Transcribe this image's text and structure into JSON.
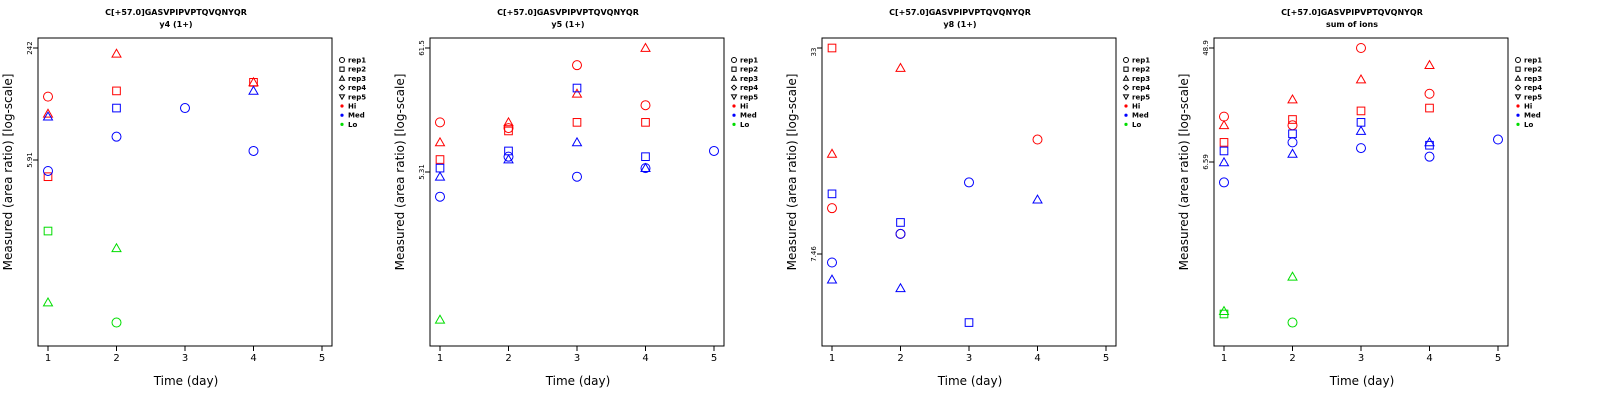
{
  "chart_data": [
    {
      "type": "scatter",
      "title": "C[+57.0]GASVPIPVPTQVQNYQR",
      "subtitle": "y4 (1+)",
      "xlabel": "Time (day)",
      "ylabel": "Measured (area ratio) [log-scale]",
      "xlim": [
        1,
        5
      ],
      "xticks": [
        "1",
        "2",
        "3",
        "4",
        "5"
      ],
      "ytick_labels": [
        "242",
        "5.91"
      ],
      "legend": [
        "rep1",
        "rep2",
        "rep3",
        "rep4",
        "rep5",
        "Hi",
        "Med",
        "Lo"
      ],
      "points": [
        {
          "x": 1,
          "level": "Hi",
          "rep": "rep1",
          "v": 0.83
        },
        {
          "x": 1,
          "level": "Hi",
          "rep": "rep2",
          "v": 0.55
        },
        {
          "x": 1,
          "level": "Hi",
          "rep": "rep3",
          "v": 0.77
        },
        {
          "x": 1,
          "level": "Med",
          "rep": "rep1",
          "v": 0.57
        },
        {
          "x": 1,
          "level": "Med",
          "rep": "rep3",
          "v": 0.76
        },
        {
          "x": 1,
          "level": "Lo",
          "rep": "rep2",
          "v": 0.36
        },
        {
          "x": 1,
          "level": "Lo",
          "rep": "rep3",
          "v": 0.11
        },
        {
          "x": 2,
          "level": "Hi",
          "rep": "rep2",
          "v": 0.85
        },
        {
          "x": 2,
          "level": "Hi",
          "rep": "rep3",
          "v": 0.98
        },
        {
          "x": 2,
          "level": "Med",
          "rep": "rep1",
          "v": 0.69
        },
        {
          "x": 2,
          "level": "Med",
          "rep": "rep2",
          "v": 0.79
        },
        {
          "x": 2,
          "level": "Lo",
          "rep": "rep1",
          "v": 0.04
        },
        {
          "x": 2,
          "level": "Lo",
          "rep": "rep3",
          "v": 0.3
        },
        {
          "x": 3,
          "level": "Med",
          "rep": "rep1",
          "v": 0.79
        },
        {
          "x": 4,
          "level": "Hi",
          "rep": "rep2",
          "v": 0.88
        },
        {
          "x": 4,
          "level": "Hi",
          "rep": "rep3",
          "v": 0.88
        },
        {
          "x": 4,
          "level": "Med",
          "rep": "rep1",
          "v": 0.64
        },
        {
          "x": 4,
          "level": "Med",
          "rep": "rep3",
          "v": 0.85
        }
      ]
    },
    {
      "type": "scatter",
      "title": "C[+57.0]GASVPIPVPTQVQNYQR",
      "subtitle": "y5 (1+)",
      "xlabel": "Time (day)",
      "ylabel": "Measured (area ratio) [log-scale]",
      "xlim": [
        1,
        5
      ],
      "xticks": [
        "1",
        "2",
        "3",
        "4",
        "5"
      ],
      "ytick_labels": [
        "61.5",
        "5.31"
      ],
      "legend": [
        "rep1",
        "rep2",
        "rep3",
        "rep4",
        "rep5",
        "Hi",
        "Med",
        "Lo"
      ],
      "points": [
        {
          "x": 1,
          "level": "Hi",
          "rep": "rep1",
          "v": 0.74
        },
        {
          "x": 1,
          "level": "Hi",
          "rep": "rep2",
          "v": 0.61
        },
        {
          "x": 1,
          "level": "Hi",
          "rep": "rep3",
          "v": 0.67
        },
        {
          "x": 1,
          "level": "Med",
          "rep": "rep1",
          "v": 0.48
        },
        {
          "x": 1,
          "level": "Med",
          "rep": "rep2",
          "v": 0.58
        },
        {
          "x": 1,
          "level": "Med",
          "rep": "rep3",
          "v": 0.55
        },
        {
          "x": 1,
          "level": "Lo",
          "rep": "rep3",
          "v": 0.05
        },
        {
          "x": 2,
          "level": "Hi",
          "rep": "rep1",
          "v": 0.72
        },
        {
          "x": 2,
          "level": "Hi",
          "rep": "rep2",
          "v": 0.71
        },
        {
          "x": 2,
          "level": "Hi",
          "rep": "rep3",
          "v": 0.74
        },
        {
          "x": 2,
          "level": "Med",
          "rep": "rep1",
          "v": 0.62
        },
        {
          "x": 2,
          "level": "Med",
          "rep": "rep2",
          "v": 0.64
        },
        {
          "x": 2,
          "level": "Med",
          "rep": "rep3",
          "v": 0.61
        },
        {
          "x": 3,
          "level": "Hi",
          "rep": "rep1",
          "v": 0.94
        },
        {
          "x": 3,
          "level": "Hi",
          "rep": "rep2",
          "v": 0.74
        },
        {
          "x": 3,
          "level": "Hi",
          "rep": "rep3",
          "v": 0.84
        },
        {
          "x": 3,
          "level": "Med",
          "rep": "rep1",
          "v": 0.55
        },
        {
          "x": 3,
          "level": "Med",
          "rep": "rep2",
          "v": 0.86
        },
        {
          "x": 3,
          "level": "Med",
          "rep": "rep3",
          "v": 0.67
        },
        {
          "x": 4,
          "level": "Hi",
          "rep": "rep1",
          "v": 0.8
        },
        {
          "x": 4,
          "level": "Hi",
          "rep": "rep2",
          "v": 0.74
        },
        {
          "x": 4,
          "level": "Hi",
          "rep": "rep3",
          "v": 1.0
        },
        {
          "x": 4,
          "level": "Med",
          "rep": "rep1",
          "v": 0.58
        },
        {
          "x": 4,
          "level": "Med",
          "rep": "rep2",
          "v": 0.62
        },
        {
          "x": 4,
          "level": "Med",
          "rep": "rep3",
          "v": 0.58
        },
        {
          "x": 5,
          "level": "Med",
          "rep": "rep1",
          "v": 0.64
        }
      ]
    },
    {
      "type": "scatter",
      "title": "C[+57.0]GASVPIPVPTQVQNYQR",
      "subtitle": "y8 (1+)",
      "xlabel": "Time (day)",
      "ylabel": "Measured (area ratio) [log-scale]",
      "xlim": [
        1,
        5
      ],
      "xticks": [
        "1",
        "2",
        "3",
        "4",
        "5"
      ],
      "ytick_labels": [
        "33",
        "7.46"
      ],
      "legend": [
        "rep1",
        "rep2",
        "rep3",
        "rep4",
        "rep5",
        "Hi",
        "Med",
        "Lo"
      ],
      "points": [
        {
          "x": 1,
          "level": "Hi",
          "rep": "rep1",
          "v": 0.44
        },
        {
          "x": 1,
          "level": "Hi",
          "rep": "rep2",
          "v": 1.0
        },
        {
          "x": 1,
          "level": "Hi",
          "rep": "rep3",
          "v": 0.63
        },
        {
          "x": 1,
          "level": "Med",
          "rep": "rep1",
          "v": 0.25
        },
        {
          "x": 1,
          "level": "Med",
          "rep": "rep2",
          "v": 0.49
        },
        {
          "x": 1,
          "level": "Med",
          "rep": "rep3",
          "v": 0.19
        },
        {
          "x": 2,
          "level": "Hi",
          "rep": "rep1",
          "v": 0.35
        },
        {
          "x": 2,
          "level": "Hi",
          "rep": "rep3",
          "v": 0.93
        },
        {
          "x": 2,
          "level": "Med",
          "rep": "rep1",
          "v": 0.35
        },
        {
          "x": 2,
          "level": "Med",
          "rep": "rep2",
          "v": 0.39
        },
        {
          "x": 2,
          "level": "Med",
          "rep": "rep3",
          "v": 0.16
        },
        {
          "x": 3,
          "level": "Med",
          "rep": "rep1",
          "v": 0.53
        },
        {
          "x": 3,
          "level": "Med",
          "rep": "rep2",
          "v": 0.04
        },
        {
          "x": 4,
          "level": "Hi",
          "rep": "rep1",
          "v": 0.68
        },
        {
          "x": 4,
          "level": "Med",
          "rep": "rep3",
          "v": 0.47
        }
      ]
    },
    {
      "type": "scatter",
      "title": "C[+57.0]GASVPIPVPTQVQNYQR",
      "subtitle": "sum of ions",
      "xlabel": "Time (day)",
      "ylabel": "Measured (area ratio) [log-scale]",
      "xlim": [
        1,
        5
      ],
      "xticks": [
        "1",
        "2",
        "3",
        "4",
        "5"
      ],
      "ytick_labels": [
        "48.9",
        "6.59"
      ],
      "legend": [
        "rep1",
        "rep2",
        "rep3",
        "rep4",
        "rep5",
        "Hi",
        "Med",
        "Lo"
      ],
      "points": [
        {
          "x": 1,
          "level": "Hi",
          "rep": "rep1",
          "v": 0.76
        },
        {
          "x": 1,
          "level": "Hi",
          "rep": "rep2",
          "v": 0.67
        },
        {
          "x": 1,
          "level": "Hi",
          "rep": "rep3",
          "v": 0.73
        },
        {
          "x": 1,
          "level": "Med",
          "rep": "rep1",
          "v": 0.53
        },
        {
          "x": 1,
          "level": "Med",
          "rep": "rep2",
          "v": 0.64
        },
        {
          "x": 1,
          "level": "Med",
          "rep": "rep3",
          "v": 0.6
        },
        {
          "x": 1,
          "level": "Lo",
          "rep": "rep2",
          "v": 0.07
        },
        {
          "x": 1,
          "level": "Lo",
          "rep": "rep3",
          "v": 0.08
        },
        {
          "x": 2,
          "level": "Hi",
          "rep": "rep1",
          "v": 0.73
        },
        {
          "x": 2,
          "level": "Hi",
          "rep": "rep2",
          "v": 0.75
        },
        {
          "x": 2,
          "level": "Hi",
          "rep": "rep3",
          "v": 0.82
        },
        {
          "x": 2,
          "level": "Med",
          "rep": "rep1",
          "v": 0.67
        },
        {
          "x": 2,
          "level": "Med",
          "rep": "rep2",
          "v": 0.7
        },
        {
          "x": 2,
          "level": "Med",
          "rep": "rep3",
          "v": 0.63
        },
        {
          "x": 2,
          "level": "Lo",
          "rep": "rep1",
          "v": 0.04
        },
        {
          "x": 2,
          "level": "Lo",
          "rep": "rep3",
          "v": 0.2
        },
        {
          "x": 3,
          "level": "Hi",
          "rep": "rep1",
          "v": 1.0
        },
        {
          "x": 3,
          "level": "Hi",
          "rep": "rep2",
          "v": 0.78
        },
        {
          "x": 3,
          "level": "Hi",
          "rep": "rep3",
          "v": 0.89
        },
        {
          "x": 3,
          "level": "Med",
          "rep": "rep1",
          "v": 0.65
        },
        {
          "x": 3,
          "level": "Med",
          "rep": "rep2",
          "v": 0.74
        },
        {
          "x": 3,
          "level": "Med",
          "rep": "rep3",
          "v": 0.71
        },
        {
          "x": 4,
          "level": "Hi",
          "rep": "rep1",
          "v": 0.84
        },
        {
          "x": 4,
          "level": "Hi",
          "rep": "rep2",
          "v": 0.79
        },
        {
          "x": 4,
          "level": "Hi",
          "rep": "rep3",
          "v": 0.94
        },
        {
          "x": 4,
          "level": "Med",
          "rep": "rep1",
          "v": 0.62
        },
        {
          "x": 4,
          "level": "Med",
          "rep": "rep2",
          "v": 0.66
        },
        {
          "x": 4,
          "level": "Med",
          "rep": "rep3",
          "v": 0.67
        },
        {
          "x": 5,
          "level": "Med",
          "rep": "rep1",
          "v": 0.68
        }
      ]
    }
  ],
  "colors": {
    "Hi": "#ff0000",
    "Med": "#0000ff",
    "Lo": "#00dd00"
  }
}
